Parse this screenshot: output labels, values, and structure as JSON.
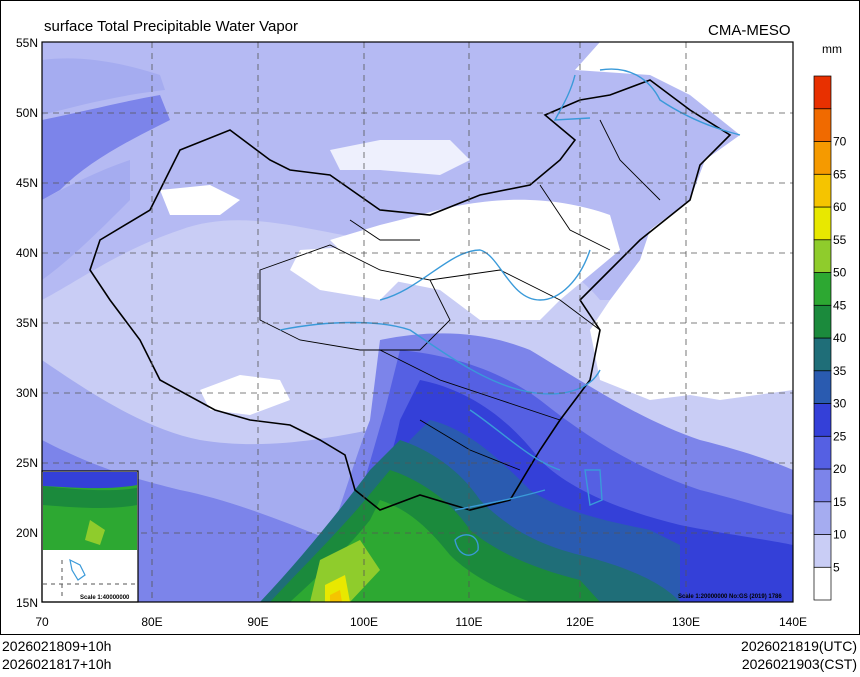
{
  "title": "surface Total Precipitable Water Vapor",
  "source": "CMA-MESO",
  "units": "mm",
  "latitude_labels": [
    "55N",
    "50N",
    "45N",
    "40N",
    "35N",
    "30N",
    "25N",
    "20N",
    "15N"
  ],
  "longitude_labels": [
    "70",
    "80E",
    "90E",
    "100E",
    "110E",
    "120E",
    "130E",
    "140E"
  ],
  "colorbar": {
    "labels": [
      "5",
      "10",
      "15",
      "20",
      "25",
      "30",
      "35",
      "40",
      "45",
      "50",
      "55",
      "60",
      "65",
      "70"
    ],
    "colors": [
      "#ffffff",
      "#c9cdf5",
      "#a5acf0",
      "#7c84ea",
      "#5560e3",
      "#3440d8",
      "#2a5bb0",
      "#1f6e78",
      "#1b8a3c",
      "#2da832",
      "#8fcc2c",
      "#e8e800",
      "#f5c400",
      "#f59a00",
      "#f06a00",
      "#e83000"
    ]
  },
  "inset_scale": "Scale 1:40000000",
  "map_scale": "Scale 1:20000000 No:GS (2019) 1786",
  "footer": {
    "init_left_1": "2026021809+10h",
    "init_left_2": "2026021817+10h",
    "valid_right_1": "2026021819(UTC)",
    "valid_right_2": "2026021903(CST)"
  }
}
